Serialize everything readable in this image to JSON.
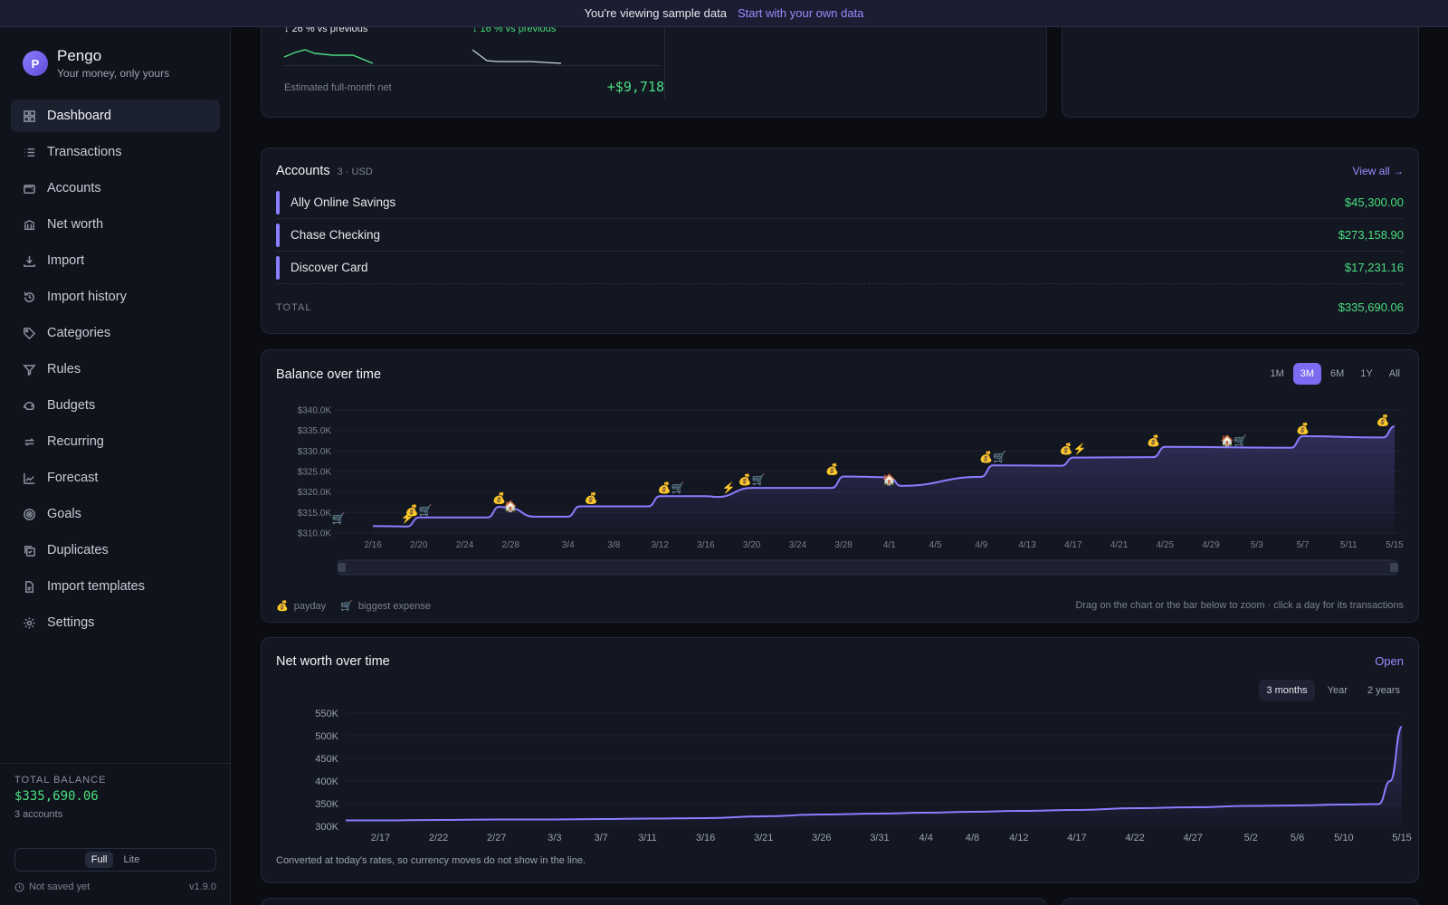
{
  "banner": {
    "text": "You're viewing sample data",
    "link": "Start with your own data"
  },
  "brand": {
    "initial": "P",
    "name": "Pengo",
    "tagline": "Your money, only yours"
  },
  "nav": [
    {
      "label": "Dashboard",
      "icon": "grid-icon",
      "active": true
    },
    {
      "label": "Transactions",
      "icon": "list-icon"
    },
    {
      "label": "Accounts",
      "icon": "wallet-icon"
    },
    {
      "label": "Net worth",
      "icon": "bank-icon"
    },
    {
      "label": "Import",
      "icon": "download-icon"
    },
    {
      "label": "Import history",
      "icon": "history-icon"
    },
    {
      "label": "Categories",
      "icon": "tag-icon"
    },
    {
      "label": "Rules",
      "icon": "filter-icon"
    },
    {
      "label": "Budgets",
      "icon": "piggy-icon"
    },
    {
      "label": "Recurring",
      "icon": "repeat-icon"
    },
    {
      "label": "Forecast",
      "icon": "trend-icon"
    },
    {
      "label": "Goals",
      "icon": "target-icon"
    },
    {
      "label": "Duplicates",
      "icon": "copy-icon"
    },
    {
      "label": "Import templates",
      "icon": "file-icon"
    },
    {
      "label": "Settings",
      "icon": "gear-icon"
    }
  ],
  "sidebar_footer": {
    "total_label": "TOTAL BALANCE",
    "total_value": "$335,690.06",
    "accounts_count": "3 accounts",
    "mode_full": "Full",
    "mode_lite": "Lite",
    "save_status": "Not saved yet",
    "version": "v1.9.0"
  },
  "summary": {
    "prev_left": "↓ 26 % vs previous",
    "prev_right": "↓ 16 % vs previous",
    "estimate_label": "Estimated full-month net",
    "estimate_value": "+$9,718"
  },
  "accounts": {
    "title": "Accounts",
    "meta": "3 · USD",
    "view_all": "View all →",
    "rows": [
      {
        "name": "Ally Online Savings",
        "value": "$45,300.00"
      },
      {
        "name": "Chase Checking",
        "value": "$273,158.90"
      },
      {
        "name": "Discover Card",
        "value": "$17,231.16"
      }
    ],
    "total_label": "TOTAL",
    "total_value": "$335,690.06"
  },
  "balance": {
    "title": "Balance over time",
    "ranges": [
      "1M",
      "3M",
      "6M",
      "1Y",
      "All"
    ],
    "active_range": "3M",
    "legend_payday": "payday",
    "legend_expense": "biggest expense",
    "hint": "Drag on the chart or the bar below to zoom · click a day for its transactions"
  },
  "networth": {
    "title": "Net worth over time",
    "open": "Open",
    "ranges": [
      "3 months",
      "Year",
      "2 years"
    ],
    "active_range": "3 months",
    "note": "Converted at today's rates, so currency moves do not show in the line."
  },
  "chart_data": [
    {
      "type": "line",
      "title": "Balance over time",
      "y_ticks": [
        "$310.0K",
        "$315.0K",
        "$320.0K",
        "$325.0K",
        "$330.0K",
        "$335.0K",
        "$340.0K"
      ],
      "ylim": [
        310000,
        340000
      ],
      "x_ticks": [
        "2/16",
        "2/20",
        "2/24",
        "2/28",
        "3/4",
        "3/8",
        "3/12",
        "3/16",
        "3/20",
        "3/24",
        "3/28",
        "4/1",
        "4/5",
        "4/9",
        "4/13",
        "4/17",
        "4/21",
        "4/25",
        "4/29",
        "5/3",
        "5/7",
        "5/11",
        "5/15"
      ],
      "series": [
        {
          "x": [
            "2/16",
            "2/19",
            "2/20",
            "2/26",
            "2/27",
            "2/28",
            "3/1",
            "3/4",
            "3/5",
            "3/11",
            "3/12",
            "3/16",
            "3/17",
            "3/20",
            "3/21",
            "3/27",
            "3/28",
            "4/1",
            "4/2",
            "4/9",
            "4/10",
            "4/16",
            "4/17",
            "4/24",
            "4/25",
            "5/6",
            "5/7",
            "5/14",
            "5/15"
          ],
          "y": [
            311700,
            311600,
            313800,
            313800,
            316400,
            316000,
            314000,
            314000,
            316500,
            316500,
            319000,
            319000,
            318800,
            321000,
            321000,
            321000,
            323800,
            323600,
            321500,
            323700,
            326500,
            326400,
            328400,
            328500,
            331000,
            330800,
            333600,
            333300,
            336000
          ]
        }
      ],
      "markers": [
        "payday",
        "biggest expense"
      ]
    },
    {
      "type": "line",
      "title": "Net worth over time",
      "y_ticks": [
        "300K",
        "350K",
        "400K",
        "450K",
        "500K",
        "550K"
      ],
      "ylim": [
        300000,
        550000
      ],
      "x_ticks": [
        "2/17",
        "2/22",
        "2/27",
        "3/3",
        "3/7",
        "3/11",
        "3/16",
        "3/21",
        "3/26",
        "3/31",
        "4/4",
        "4/8",
        "4/12",
        "4/17",
        "4/22",
        "4/27",
        "5/2",
        "5/6",
        "5/10",
        "5/15"
      ],
      "series": [
        {
          "x": [
            "2/14",
            "2/17",
            "2/22",
            "2/27",
            "3/3",
            "3/7",
            "3/11",
            "3/16",
            "3/21",
            "3/26",
            "3/31",
            "4/4",
            "4/8",
            "4/12",
            "4/17",
            "4/22",
            "4/27",
            "5/2",
            "5/6",
            "5/10",
            "5/13",
            "5/14",
            "5/15"
          ],
          "y": [
            313000,
            313000,
            314000,
            315000,
            315000,
            316000,
            317000,
            318000,
            322000,
            326000,
            328000,
            330000,
            332000,
            334000,
            336000,
            340000,
            342000,
            345000,
            346000,
            348000,
            349000,
            400000,
            520000
          ]
        }
      ]
    }
  ]
}
